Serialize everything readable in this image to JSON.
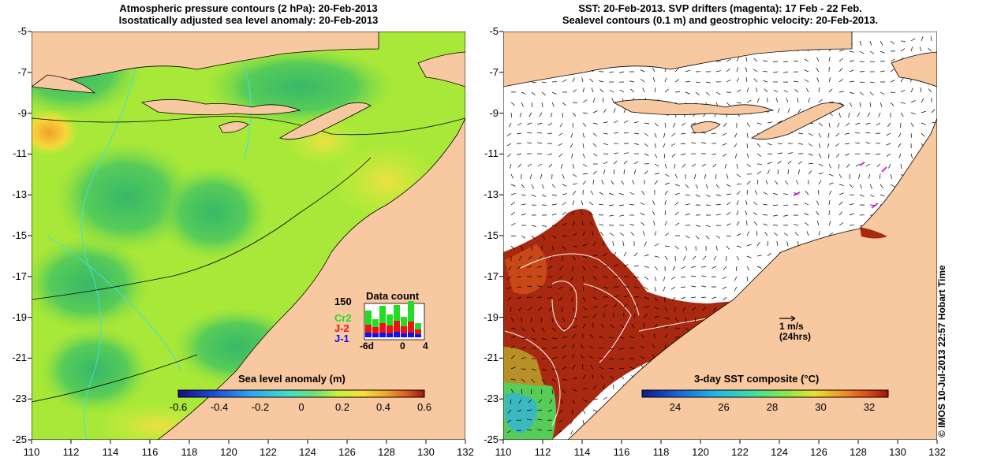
{
  "left_panel": {
    "title_line1": "Atmospheric pressure contours (2 hPa): 20-Feb-2013",
    "title_line2": "Isostatically adjusted sea level anomaly: 20-Feb-2013",
    "colorbar_label": "Sea level anomaly (m)",
    "colorbar_ticks": [
      "-0.6",
      "-0.4",
      "-0.2",
      "0",
      "0.2",
      "0.4",
      "0.6"
    ],
    "colorbar_colors": [
      "#1a0a8c",
      "#1f4fd8",
      "#2ea8ef",
      "#3fe0c8",
      "#6ce070",
      "#c8f040",
      "#f8e038",
      "#f0a030",
      "#d85a20",
      "#a01808"
    ],
    "inset": {
      "title": "Data count",
      "ymax": "150",
      "series_labels": [
        "Cr2",
        "J-2",
        "J-1"
      ],
      "series_colors": [
        "#22dd22",
        "#ee1111",
        "#1111ee"
      ],
      "xticks": [
        "-6d",
        "0",
        "4"
      ]
    }
  },
  "right_panel": {
    "title_line1": "SST: 20-Feb-2013. SVP drifters (magenta): 17 Feb - 22 Feb.",
    "title_line2": "Sealevel contours (0.1 m) and geostrophic velocity: 20-Feb-2013.",
    "colorbar_label": "3-day SST composite (°C)",
    "colorbar_ticks": [
      "24",
      "26",
      "28",
      "30",
      "32"
    ],
    "colorbar_colors": [
      "#0a1a8c",
      "#1a66d8",
      "#22b8e8",
      "#3ce0a0",
      "#8ae848",
      "#e8e030",
      "#f09028",
      "#d84a18",
      "#a01008"
    ],
    "scale_label": "1 m/s",
    "scale_sub": "(24hrs)"
  },
  "axes": {
    "lon_ticks": [
      "110",
      "112",
      "114",
      "116",
      "118",
      "120",
      "122",
      "124",
      "126",
      "128",
      "130",
      "132"
    ],
    "lat_ticks": [
      "-5",
      "-7",
      "-9",
      "-11",
      "-13",
      "-15",
      "-17",
      "-19",
      "-21",
      "-23",
      "-25"
    ]
  },
  "credit": "© IMOS 10-Jul-2013 22:57 Hobart Time",
  "colors": {
    "land": "#f8c8a0",
    "ocean_green": "#88dd44",
    "sst_hot": "#a82810",
    "coast": "#000000",
    "contour": "#40e0e0"
  }
}
